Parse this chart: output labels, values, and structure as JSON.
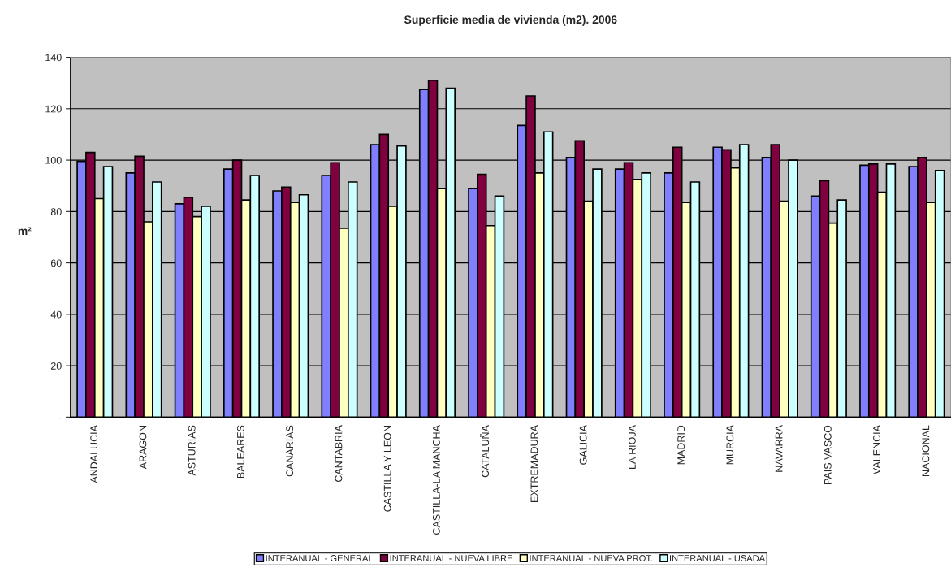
{
  "chart_data": {
    "type": "bar",
    "title": "Superficie media de vivienda (m2). 2006",
    "ylabel": "m²",
    "categories": [
      "ANDALUCIA",
      "ARAGON",
      "ASTURIAS",
      "BALEARES",
      "CANARIAS",
      "CANTABRIA",
      "CASTILLA Y LEON",
      "CASTILLA-LA MANCHA",
      "CATALUÑA",
      "EXTREMADURA",
      "GALICIA",
      "LA RIOJA",
      "MADRID",
      "MURCIA",
      "NAVARRA",
      "PAIS VASCO",
      "VALENCIA",
      "NACIONAL"
    ],
    "series": [
      {
        "name": "INTERANUAL - GENERAL",
        "color": "#8080ff",
        "values": [
          99.5,
          95,
          83,
          96.5,
          88,
          94,
          106,
          127.5,
          89,
          113.5,
          101,
          96.5,
          95,
          105,
          101,
          86,
          98,
          97.5
        ]
      },
      {
        "name": "INTERANUAL - NUEVA LIBRE",
        "color": "#800040",
        "values": [
          103,
          101.5,
          85.5,
          100,
          89.5,
          99,
          110,
          131,
          94.5,
          125,
          107.5,
          99,
          105,
          104,
          106,
          92,
          98.5,
          101
        ]
      },
      {
        "name": "INTERANUAL - NUEVA PROT.",
        "color": "#ffffc0",
        "values": [
          85,
          76,
          78,
          84.5,
          83.5,
          73.5,
          82,
          89,
          74.5,
          95,
          84,
          92.5,
          83.5,
          97,
          84,
          75.5,
          87.5,
          83.5
        ]
      },
      {
        "name": "INTERANUAL - USADA",
        "color": "#ccffff",
        "values": [
          97.5,
          91.5,
          82,
          94,
          86.5,
          91.5,
          105.5,
          128,
          86,
          111,
          96.5,
          95,
          91.5,
          106,
          100,
          84.5,
          98.5,
          96
        ]
      }
    ],
    "ylim": [
      0,
      140
    ],
    "yticks": [
      {
        "value": 0,
        "label": "-"
      },
      20,
      40,
      60,
      80,
      100,
      120,
      140
    ],
    "grid": "y",
    "legend": "bottom"
  }
}
